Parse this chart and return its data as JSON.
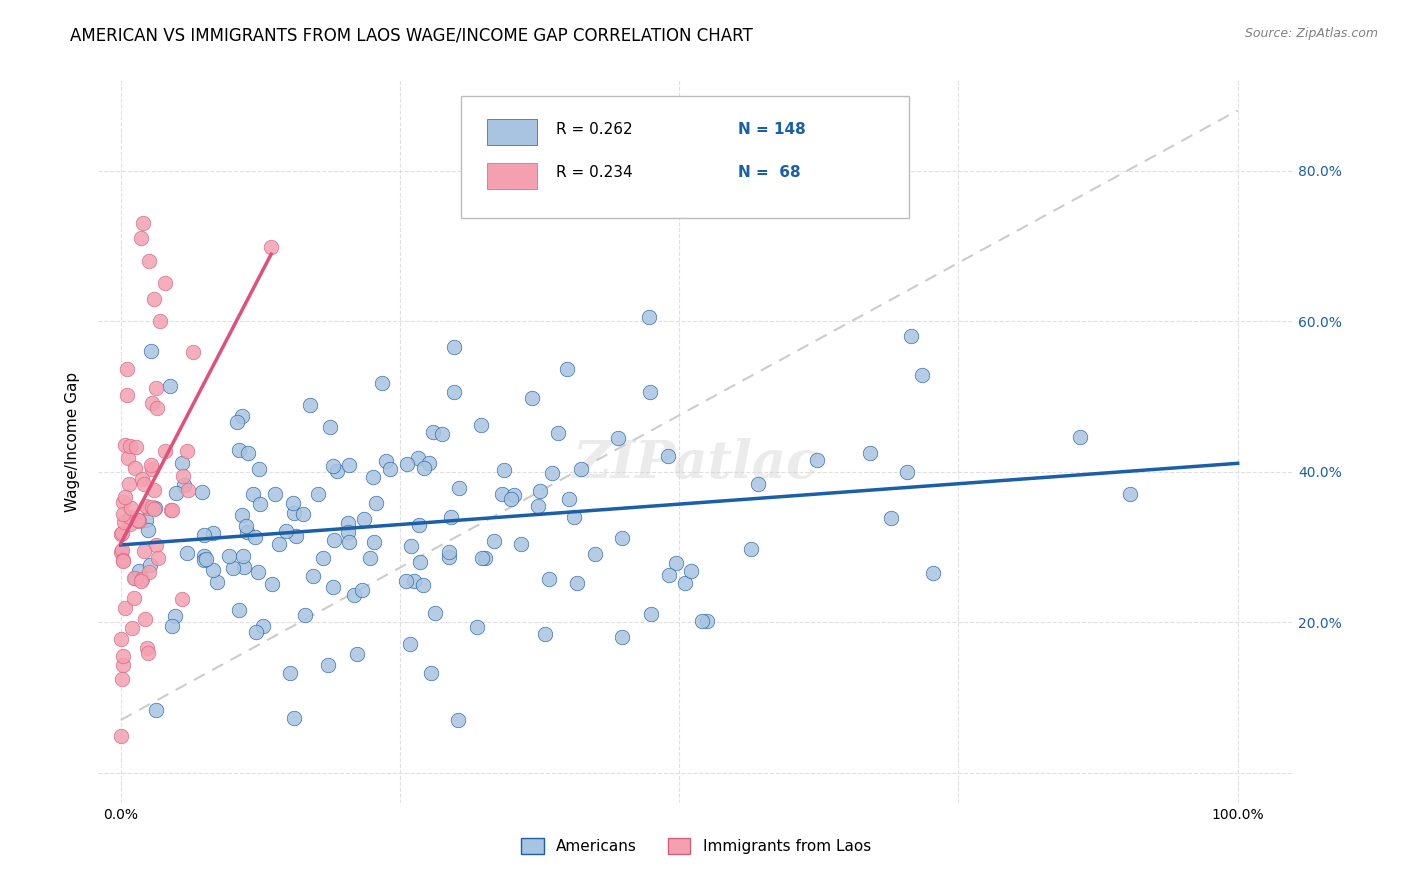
{
  "title": "AMERICAN VS IMMIGRANTS FROM LAOS WAGE/INCOME GAP CORRELATION CHART",
  "source": "Source: ZipAtlas.com",
  "ylabel": "Wage/Income Gap",
  "american_color": "#a8c4e0",
  "laos_color": "#f4a0b0",
  "american_line_color": "#1a5fa8",
  "laos_line_color": "#e0507a",
  "laos_edge_color": "#d06080",
  "diagonal_color": "#cccccc",
  "watermark": "ZIPatlас",
  "legend_r_american": "0.262",
  "legend_n_american": "148",
  "legend_r_laos": "0.234",
  "legend_n_laos": "68",
  "legend_color": "#1a5fa8",
  "title_fontsize": 12,
  "tick_fontsize": 10,
  "right_tick_color": "#1a5fa8"
}
